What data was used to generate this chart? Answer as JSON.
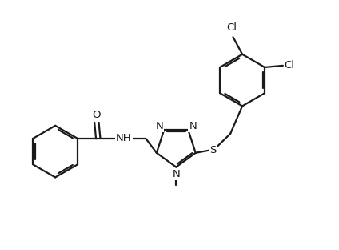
{
  "background_color": "#ffffff",
  "line_color": "#1a1a1a",
  "line_width": 1.6,
  "text_color": "#1a1a1a",
  "font_size": 9.5,
  "figsize": [
    4.24,
    3.12
  ],
  "dpi": 100,
  "xlim": [
    0,
    10
  ],
  "ylim": [
    0,
    7.4
  ]
}
